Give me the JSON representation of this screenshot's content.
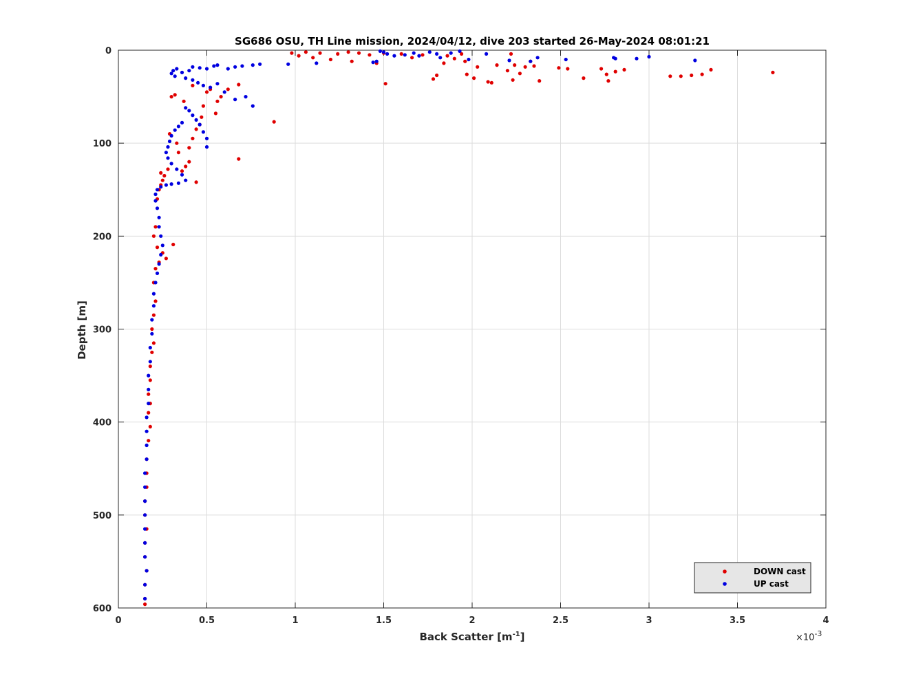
{
  "chart_data": {
    "type": "scatter",
    "title": "SG686 OSU, TH Line mission, 2024/04/12, dive 203 started 26-May-2024 08:01:21",
    "xlabel_main": "Back Scatter [m",
    "xlabel_sup": "-1",
    "xlabel_end": "]",
    "ylabel": "Depth [m]",
    "x_multiplier_label": "×10",
    "x_multiplier_exp": "-3",
    "xlim": [
      0,
      4
    ],
    "ylim": [
      0,
      600
    ],
    "y_reversed": true,
    "grid": true,
    "legend_placement": "bottom-right",
    "x_ticks": [
      0,
      0.5,
      1,
      1.5,
      2,
      2.5,
      3,
      3.5,
      4
    ],
    "x_tick_labels": [
      "0",
      "0.5",
      "1",
      "1.5",
      "2",
      "2.5",
      "3",
      "3.5",
      "4"
    ],
    "y_ticks": [
      0,
      100,
      200,
      300,
      400,
      500,
      600
    ],
    "y_tick_labels": [
      "0",
      "100",
      "200",
      "300",
      "400",
      "500",
      "600"
    ],
    "series": [
      {
        "name": "DOWN cast",
        "color": "#e00000",
        "points": [
          [
            0.98,
            3
          ],
          [
            1.02,
            6
          ],
          [
            1.06,
            2
          ],
          [
            1.1,
            8
          ],
          [
            1.14,
            3
          ],
          [
            1.2,
            10
          ],
          [
            1.24,
            4
          ],
          [
            1.3,
            2
          ],
          [
            1.32,
            12
          ],
          [
            1.36,
            3
          ],
          [
            1.42,
            5
          ],
          [
            1.46,
            14
          ],
          [
            1.5,
            3
          ],
          [
            1.51,
            36
          ],
          [
            1.6,
            4
          ],
          [
            1.66,
            8
          ],
          [
            1.72,
            5
          ],
          [
            1.78,
            31
          ],
          [
            1.8,
            27
          ],
          [
            1.84,
            14
          ],
          [
            1.86,
            6
          ],
          [
            1.9,
            9
          ],
          [
            1.94,
            4
          ],
          [
            1.96,
            12
          ],
          [
            1.97,
            26
          ],
          [
            2.01,
            30
          ],
          [
            2.03,
            18
          ],
          [
            2.09,
            34
          ],
          [
            2.11,
            35
          ],
          [
            2.14,
            16
          ],
          [
            2.2,
            22
          ],
          [
            2.22,
            4
          ],
          [
            2.23,
            32
          ],
          [
            2.24,
            16
          ],
          [
            2.27,
            25
          ],
          [
            2.3,
            18
          ],
          [
            2.33,
            12
          ],
          [
            2.35,
            17
          ],
          [
            2.38,
            33
          ],
          [
            2.49,
            19
          ],
          [
            2.54,
            20
          ],
          [
            2.63,
            30
          ],
          [
            2.73,
            20
          ],
          [
            2.76,
            26
          ],
          [
            2.77,
            33
          ],
          [
            2.81,
            23
          ],
          [
            2.86,
            21
          ],
          [
            3.12,
            28
          ],
          [
            3.18,
            28
          ],
          [
            3.24,
            27
          ],
          [
            3.3,
            26
          ],
          [
            3.35,
            21
          ],
          [
            3.7,
            24
          ],
          [
            0.88,
            77
          ],
          [
            0.68,
            37
          ],
          [
            0.68,
            117
          ],
          [
            0.62,
            42
          ],
          [
            0.58,
            50
          ],
          [
            0.56,
            55
          ],
          [
            0.55,
            68
          ],
          [
            0.52,
            42
          ],
          [
            0.5,
            45
          ],
          [
            0.48,
            60
          ],
          [
            0.47,
            72
          ],
          [
            0.46,
            80
          ],
          [
            0.44,
            85
          ],
          [
            0.44,
            142
          ],
          [
            0.42,
            95
          ],
          [
            0.42,
            38
          ],
          [
            0.4,
            105
          ],
          [
            0.4,
            120
          ],
          [
            0.38,
            125
          ],
          [
            0.37,
            55
          ],
          [
            0.36,
            130
          ],
          [
            0.34,
            110
          ],
          [
            0.33,
            100
          ],
          [
            0.32,
            48
          ],
          [
            0.31,
            209
          ],
          [
            0.3,
            50
          ],
          [
            0.29,
            90
          ],
          [
            0.28,
            128
          ],
          [
            0.27,
            224
          ],
          [
            0.26,
            135
          ],
          [
            0.25,
            140
          ],
          [
            0.25,
            218
          ],
          [
            0.24,
            145
          ],
          [
            0.24,
            132
          ],
          [
            0.23,
            150
          ],
          [
            0.23,
            228
          ],
          [
            0.22,
            160
          ],
          [
            0.22,
            212
          ],
          [
            0.21,
            190
          ],
          [
            0.21,
            235
          ],
          [
            0.2,
            200
          ],
          [
            0.2,
            250
          ],
          [
            0.21,
            270
          ],
          [
            0.2,
            285
          ],
          [
            0.19,
            300
          ],
          [
            0.2,
            315
          ],
          [
            0.19,
            325
          ],
          [
            0.18,
            340
          ],
          [
            0.18,
            355
          ],
          [
            0.17,
            370
          ],
          [
            0.18,
            380
          ],
          [
            0.17,
            390
          ],
          [
            0.18,
            405
          ],
          [
            0.17,
            420
          ],
          [
            0.16,
            440
          ],
          [
            0.16,
            455
          ],
          [
            0.16,
            470
          ],
          [
            0.15,
            485
          ],
          [
            0.15,
            500
          ],
          [
            0.16,
            515
          ],
          [
            0.15,
            530
          ],
          [
            0.15,
            545
          ],
          [
            0.16,
            560
          ],
          [
            0.15,
            575
          ],
          [
            0.15,
            590
          ],
          [
            0.15,
            596
          ]
        ]
      },
      {
        "name": "UP cast",
        "color": "#0000e0",
        "points": [
          [
            1.48,
            1
          ],
          [
            1.5,
            2
          ],
          [
            1.52,
            4
          ],
          [
            1.56,
            6
          ],
          [
            1.62,
            5
          ],
          [
            1.67,
            3
          ],
          [
            1.7,
            6
          ],
          [
            1.76,
            2
          ],
          [
            1.8,
            4
          ],
          [
            1.82,
            8
          ],
          [
            1.88,
            3
          ],
          [
            1.93,
            1
          ],
          [
            1.98,
            10
          ],
          [
            2.08,
            4
          ],
          [
            2.21,
            11
          ],
          [
            2.33,
            12
          ],
          [
            2.37,
            8
          ],
          [
            2.53,
            10
          ],
          [
            2.8,
            8
          ],
          [
            2.81,
            9
          ],
          [
            2.93,
            9
          ],
          [
            3.0,
            7
          ],
          [
            3.26,
            11
          ],
          [
            1.44,
            13
          ],
          [
            1.46,
            12
          ],
          [
            1.12,
            14
          ],
          [
            0.96,
            15
          ],
          [
            0.8,
            15
          ],
          [
            0.76,
            16
          ],
          [
            0.7,
            17
          ],
          [
            0.66,
            18
          ],
          [
            0.62,
            20
          ],
          [
            0.56,
            16
          ],
          [
            0.54,
            17
          ],
          [
            0.5,
            20
          ],
          [
            0.46,
            19
          ],
          [
            0.42,
            18
          ],
          [
            0.4,
            22
          ],
          [
            0.36,
            24
          ],
          [
            0.33,
            20
          ],
          [
            0.31,
            22
          ],
          [
            0.3,
            25
          ],
          [
            0.32,
            28
          ],
          [
            0.38,
            30
          ],
          [
            0.42,
            32
          ],
          [
            0.45,
            35
          ],
          [
            0.48,
            38
          ],
          [
            0.52,
            40
          ],
          [
            0.56,
            36
          ],
          [
            0.6,
            45
          ],
          [
            0.66,
            53
          ],
          [
            0.72,
            50
          ],
          [
            0.76,
            60
          ],
          [
            0.5,
            95
          ],
          [
            0.5,
            104
          ],
          [
            0.48,
            88
          ],
          [
            0.46,
            80
          ],
          [
            0.44,
            75
          ],
          [
            0.42,
            70
          ],
          [
            0.4,
            65
          ],
          [
            0.38,
            62
          ],
          [
            0.36,
            78
          ],
          [
            0.34,
            82
          ],
          [
            0.32,
            86
          ],
          [
            0.3,
            92
          ],
          [
            0.29,
            98
          ],
          [
            0.28,
            104
          ],
          [
            0.27,
            110
          ],
          [
            0.28,
            116
          ],
          [
            0.3,
            122
          ],
          [
            0.33,
            128
          ],
          [
            0.36,
            134
          ],
          [
            0.38,
            140
          ],
          [
            0.34,
            143
          ],
          [
            0.3,
            144
          ],
          [
            0.27,
            145
          ],
          [
            0.24,
            147
          ],
          [
            0.22,
            150
          ],
          [
            0.21,
            155
          ],
          [
            0.21,
            162
          ],
          [
            0.22,
            170
          ],
          [
            0.23,
            180
          ],
          [
            0.23,
            190
          ],
          [
            0.24,
            200
          ],
          [
            0.25,
            210
          ],
          [
            0.24,
            220
          ],
          [
            0.23,
            230
          ],
          [
            0.22,
            240
          ],
          [
            0.21,
            250
          ],
          [
            0.2,
            262
          ],
          [
            0.2,
            275
          ],
          [
            0.19,
            290
          ],
          [
            0.19,
            305
          ],
          [
            0.18,
            320
          ],
          [
            0.18,
            335
          ],
          [
            0.17,
            350
          ],
          [
            0.17,
            365
          ],
          [
            0.17,
            380
          ],
          [
            0.16,
            395
          ],
          [
            0.16,
            410
          ],
          [
            0.16,
            425
          ],
          [
            0.16,
            440
          ],
          [
            0.15,
            455
          ],
          [
            0.15,
            470
          ],
          [
            0.15,
            485
          ],
          [
            0.15,
            500
          ],
          [
            0.15,
            515
          ],
          [
            0.15,
            530
          ],
          [
            0.15,
            545
          ],
          [
            0.16,
            560
          ],
          [
            0.15,
            575
          ],
          [
            0.15,
            590
          ]
        ]
      }
    ]
  }
}
